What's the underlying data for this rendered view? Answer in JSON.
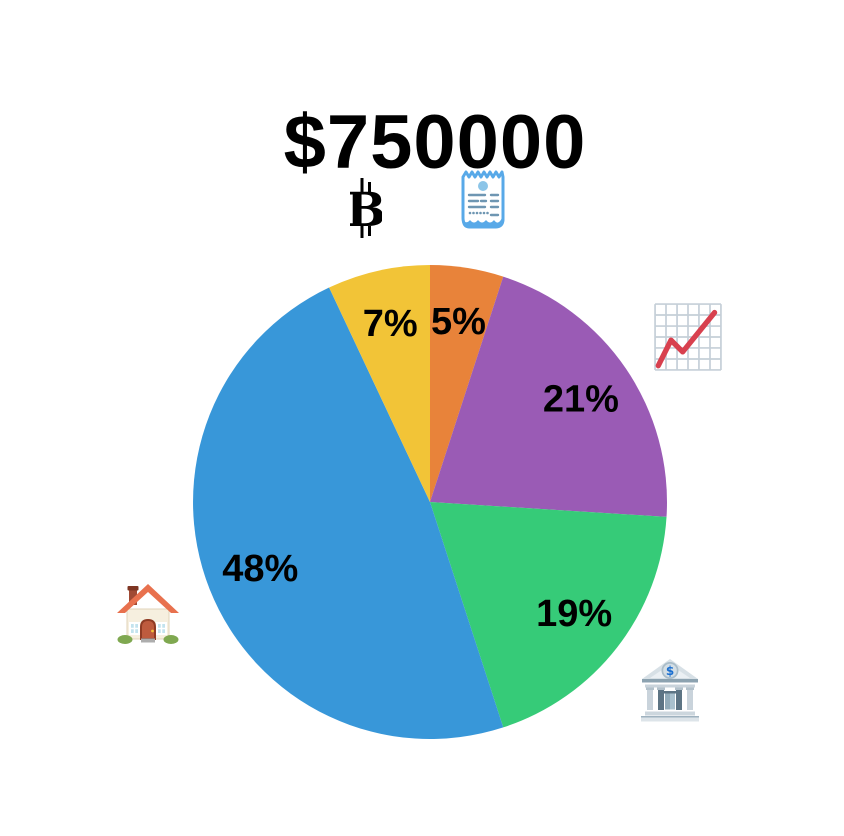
{
  "page": {
    "background": "#FFFFFF"
  },
  "title": "$750000",
  "icons": [
    {
      "name": "bitcoin-icon",
      "glyph": "₿",
      "base_letter": "B",
      "color": "#000000"
    },
    {
      "name": "receipt-icon",
      "glyph": "🧾",
      "color": "#58A9E8"
    },
    {
      "name": "chart-increasing-icon",
      "glyph": "📈",
      "line_color": "#D8404E",
      "grid_color": "#C5CFD8"
    },
    {
      "name": "house-icon",
      "glyph": "🏠",
      "roof_color": "#E8714E"
    },
    {
      "name": "bank-icon",
      "glyph": "🏦",
      "emblem_text": "$",
      "emblem_color": "#1B6FD0"
    }
  ],
  "chart_data": {
    "type": "pie",
    "title": "$750000",
    "start_angle_deg": 0,
    "direction": "clockwise",
    "label_radius_fraction": 0.77,
    "label_color": "#000000",
    "legend_position": "none",
    "slices": [
      {
        "label": "5%",
        "value": 5,
        "color": "#E8833A",
        "adjacent_icon": "receipt-icon"
      },
      {
        "label": "21%",
        "value": 21,
        "color": "#9A5BB5",
        "adjacent_icon": "chart-increasing-icon"
      },
      {
        "label": "19%",
        "value": 19,
        "color": "#36CB78",
        "adjacent_icon": "bank-icon"
      },
      {
        "label": "48%",
        "value": 48,
        "color": "#3897D9",
        "adjacent_icon": "house-icon"
      },
      {
        "label": "7%",
        "value": 7,
        "color": "#F2C437",
        "adjacent_icon": "bitcoin-icon"
      }
    ]
  }
}
